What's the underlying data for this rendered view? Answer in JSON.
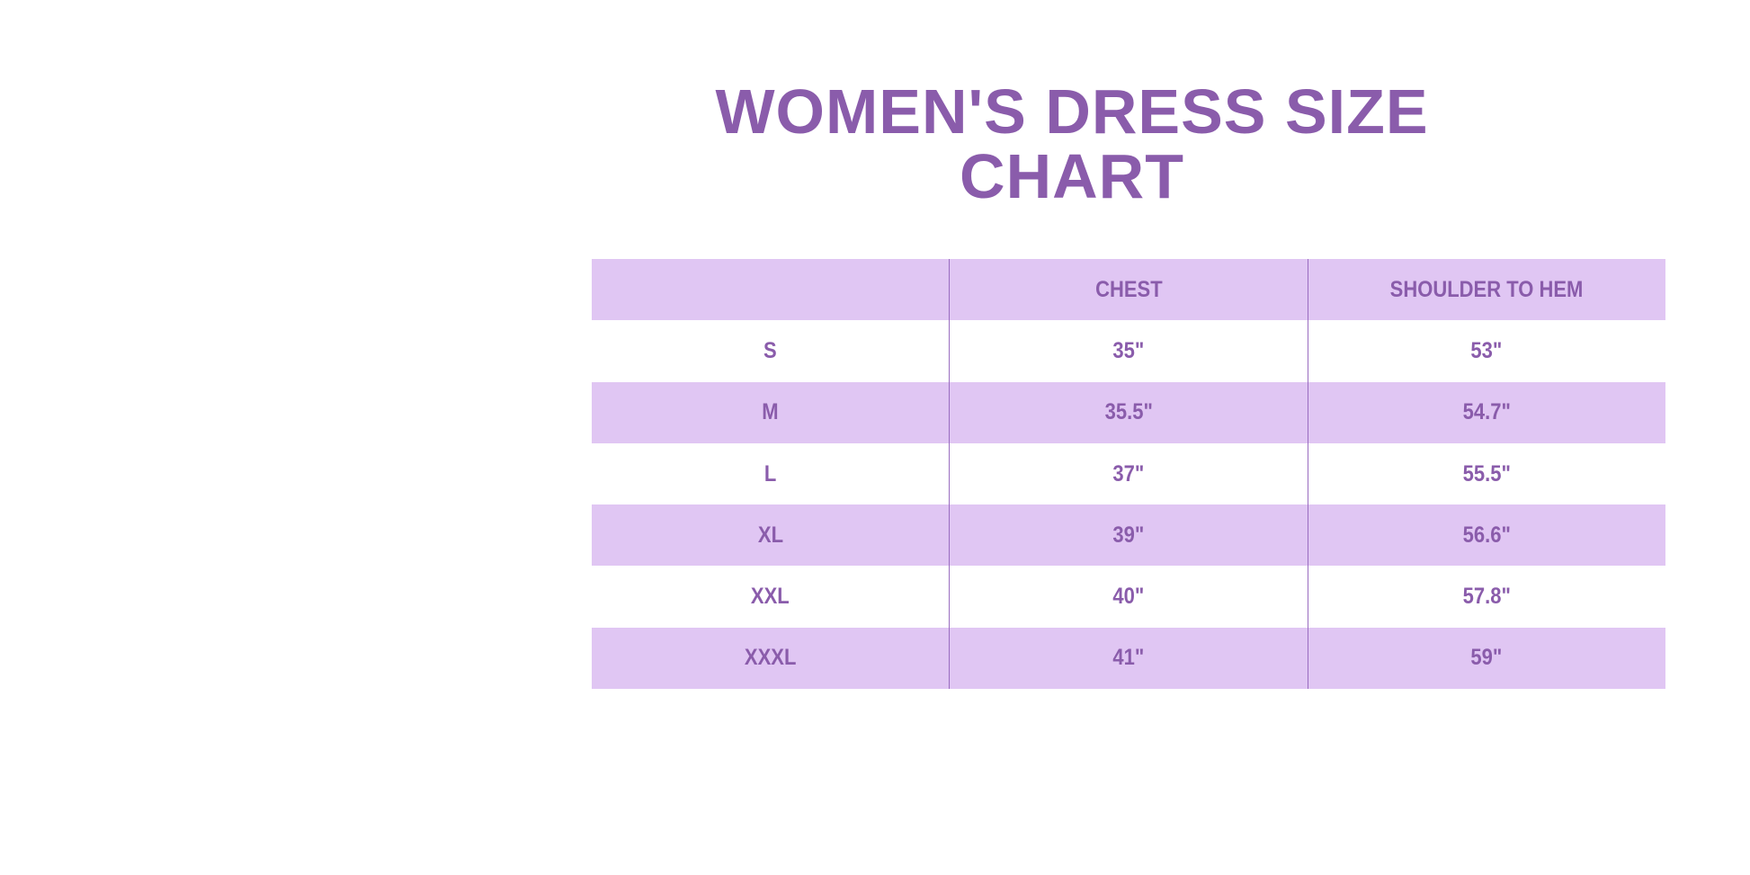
{
  "title": "WOMEN'S DRESS SIZE CHART",
  "colors": {
    "text": "#8a5cab",
    "shade": "#e0c6f3",
    "background": "#ffffff"
  },
  "table": {
    "headers": [
      "",
      "CHEST",
      "SHOULDER TO HEM"
    ],
    "rows": [
      [
        "S",
        "35\"",
        "53\""
      ],
      [
        "M",
        "35.5\"",
        "54.7\""
      ],
      [
        "L",
        "37\"",
        "55.5\""
      ],
      [
        "XL",
        "39\"",
        "56.6\""
      ],
      [
        "XXL",
        "40\"",
        "57.8\""
      ],
      [
        "XXXL",
        "41\"",
        "59\""
      ]
    ]
  }
}
